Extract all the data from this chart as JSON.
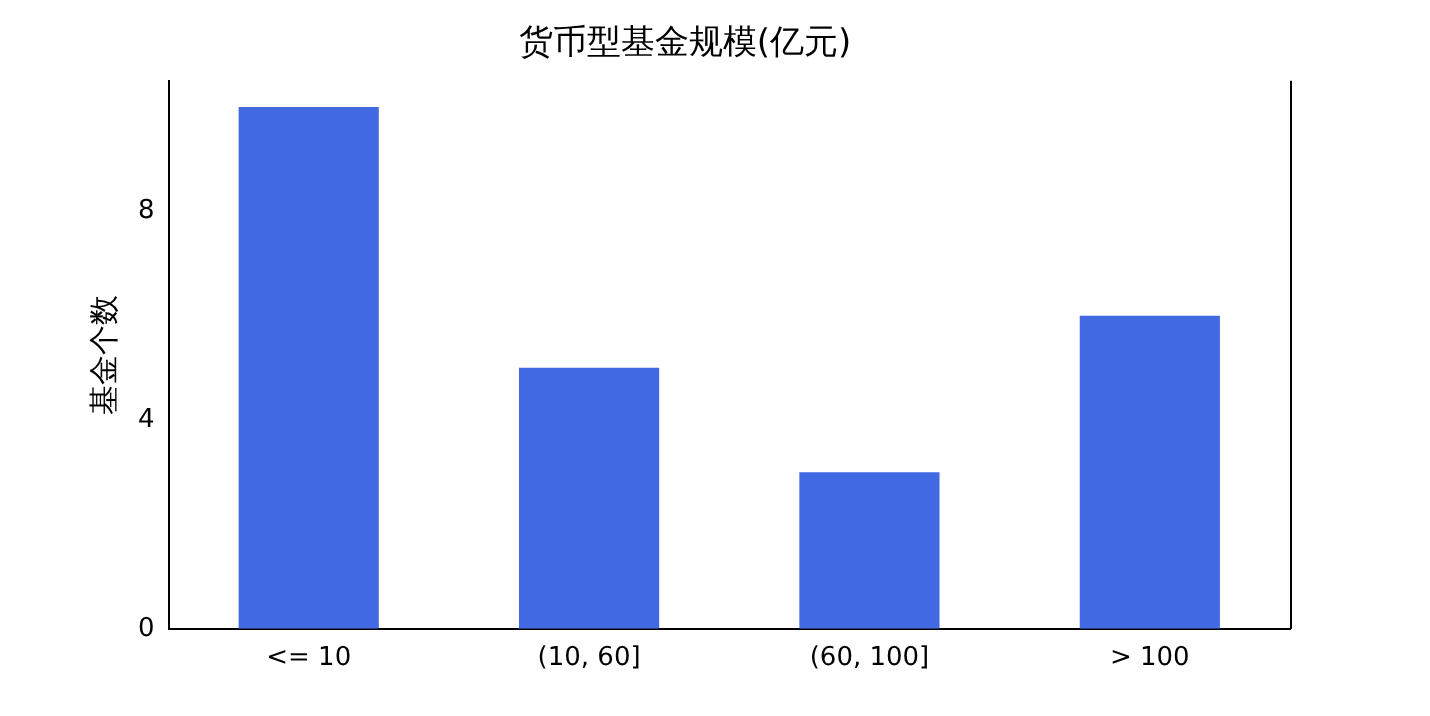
{
  "chart_data": {
    "type": "bar",
    "title": "货币型基金规模(亿元)",
    "ylabel": "基金个数",
    "categories": [
      "<= 10",
      "(10, 60]",
      "(60, 100]",
      "> 100"
    ],
    "values": [
      10,
      5,
      3,
      6
    ],
    "color": "#4169e1",
    "ylim": [
      0,
      10.5
    ],
    "yticks": [
      0,
      4,
      8
    ],
    "grid": false,
    "legend": false
  }
}
